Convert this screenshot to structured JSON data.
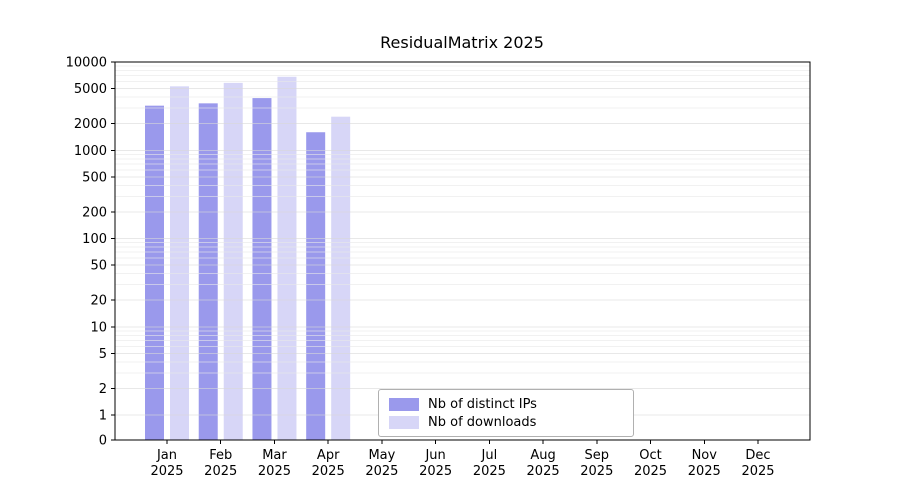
{
  "chart_data": {
    "type": "bar",
    "title": "ResidualMatrix 2025",
    "categories": [
      "Jan",
      "Feb",
      "Mar",
      "Apr",
      "May",
      "Jun",
      "Jul",
      "Aug",
      "Sep",
      "Oct",
      "Nov",
      "Dec"
    ],
    "category_year": "2025",
    "series": [
      {
        "name": "Nb of distinct IPs",
        "color": "#9a99ec",
        "values": [
          3200,
          3400,
          3900,
          1600,
          0,
          0,
          0,
          0,
          0,
          0,
          0,
          0
        ]
      },
      {
        "name": "Nb of downloads",
        "color": "#d7d6f7",
        "values": [
          5300,
          5800,
          6800,
          2400,
          0,
          0,
          0,
          0,
          0,
          0,
          0,
          0
        ]
      }
    ],
    "yscale": "log",
    "yticks": [
      10000,
      5000,
      2000,
      1000,
      500,
      200,
      100,
      50,
      20,
      10,
      5,
      2,
      1,
      0
    ],
    "ylim": [
      0,
      10000
    ],
    "grid": true,
    "legend_position": "lower center"
  },
  "colors": {
    "grid_major": "#d9d9d9",
    "grid_minor": "#e9e9e9",
    "axis": "#000000",
    "background": "#ffffff"
  }
}
